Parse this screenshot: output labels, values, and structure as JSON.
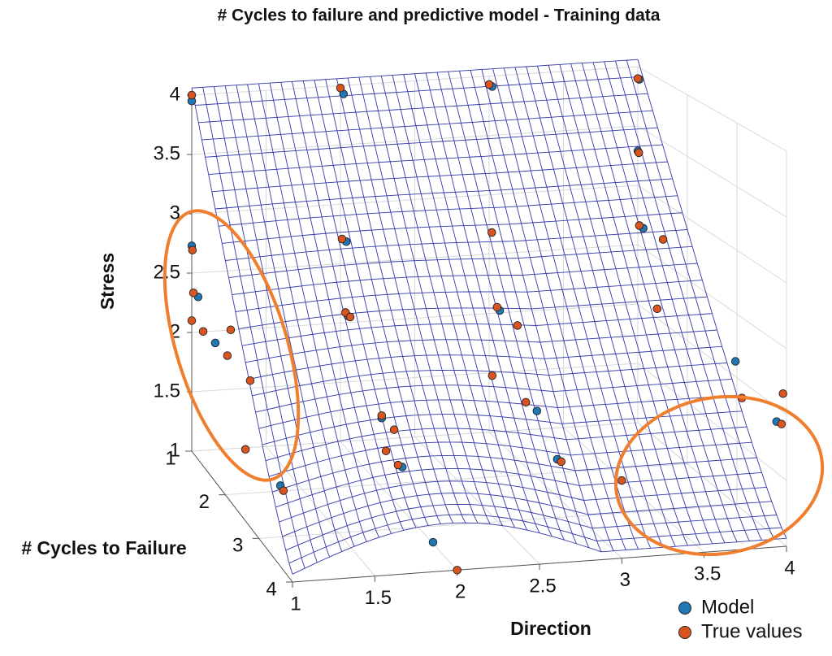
{
  "chart_data": {
    "type": "scatter3d",
    "title": "# Cycles to failure and predictive model - Training data",
    "x_label": "Direction",
    "y_label": "# Cycles to Failure",
    "z_label": "Stress",
    "xlim": [
      1,
      4
    ],
    "ylim": [
      1,
      4
    ],
    "zlim": [
      1,
      4
    ],
    "xticks": [
      1,
      1.5,
      2,
      2.5,
      3,
      3.5,
      4
    ],
    "yticks": [
      1,
      2,
      3,
      4
    ],
    "zticks": [
      1,
      1.5,
      2,
      2.5,
      3,
      3.5,
      4
    ],
    "grid": true,
    "legend": "lower right",
    "surface_color": "#3438a8",
    "series": [
      {
        "name": "Model",
        "color": "#1f77b4",
        "x": [
          1,
          1,
          1,
          1,
          1,
          2,
          2,
          2,
          2,
          2,
          2,
          3,
          3,
          3,
          3,
          4,
          4,
          4,
          4,
          4
        ],
        "y": [
          1,
          1,
          1.19,
          1.7,
          3.64,
          1.08,
          1.15,
          1.19,
          2.06,
          2.59,
          3.38,
          1.07,
          1.24,
          2.08,
          2.54,
          1.03,
          1,
          1.11,
          2.97,
          3.8
        ],
        "z": [
          3.95,
          2.73,
          2.36,
          2.14,
          1.62,
          3.95,
          2.73,
          2.12,
          1.56,
          1.34,
          1.01,
          3.93,
          2.1,
          1.54,
          1.3,
          3.9,
          3.29,
          2.67,
          2.12,
          1.89
        ]
      },
      {
        "name": "True values",
        "color": "#d9541e",
        "x": [
          1,
          1,
          1,
          1,
          1,
          1,
          1,
          1,
          1,
          1,
          2,
          2,
          2,
          2,
          2,
          2,
          2,
          2,
          2,
          3,
          3,
          3,
          3,
          3,
          3,
          3,
          3,
          4,
          4,
          4,
          4,
          4,
          4,
          4,
          4
        ],
        "y": [
          1,
          1.02,
          1.05,
          1,
          1.34,
          2.16,
          2.06,
          2.74,
          2.6,
          3.73,
          1,
          1.04,
          1.13,
          1.25,
          2.06,
          2.38,
          2.17,
          2.48,
          4,
          1,
          1.06,
          1.18,
          1.64,
          1.07,
          1.83,
          2.63,
          4,
          1,
          1.02,
          1.03,
          1.51,
          1.39,
          3.1,
          3.93,
          3.9
        ],
        "z": [
          4,
          2.7,
          2.35,
          2.1,
          2.12,
          2.39,
          2.15,
          2.16,
          1.57,
          1.61,
          3.98,
          2.72,
          2.13,
          2.13,
          1.58,
          1.57,
          1.33,
          1.32,
          1,
          3.93,
          2.7,
          2.11,
          2.1,
          1.5,
          1.53,
          1.31,
          1.59,
          3.9,
          3.28,
          2.67,
          2.69,
          2.08,
          1.87,
          2.14,
          1.9
        ]
      }
    ]
  }
}
